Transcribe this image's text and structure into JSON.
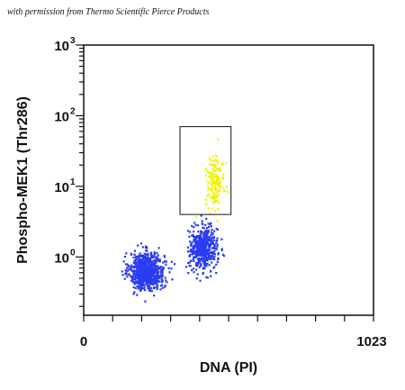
{
  "header": {
    "credit": "with permission from Thermo Scientific Pierce Products"
  },
  "chart_data": {
    "type": "scatter",
    "title": "",
    "xlabel": "DNA (PI)",
    "ylabel": "Phospho-MEK1 (Thr286)",
    "xlim": [
      0,
      1023
    ],
    "y_scale": "log",
    "ylim": [
      0.15,
      1000
    ],
    "x_ticks": [
      {
        "value": 0,
        "label": "0"
      },
      {
        "value": 1023,
        "label": "1023"
      }
    ],
    "y_ticks": [
      {
        "value": 1,
        "base": "10",
        "exponent": "0"
      },
      {
        "value": 10,
        "base": "10",
        "exponent": "1"
      },
      {
        "value": 100,
        "base": "10",
        "exponent": "2"
      },
      {
        "value": 1000,
        "base": "10",
        "exponent": "3"
      }
    ],
    "grid": false,
    "gate": {
      "x_range": [
        340,
        520
      ],
      "y_range": [
        4,
        70
      ]
    },
    "series": [
      {
        "color": "#2a3cf0",
        "clusters": [
          {
            "x_center": 220,
            "x_spread": 55,
            "y_center": 0.65,
            "y_spread_log10": 0.13,
            "count": 820
          },
          {
            "x_center": 420,
            "x_spread": 45,
            "y_center": 1.35,
            "y_spread_log10": 0.15,
            "count": 520
          }
        ]
      },
      {
        "color": "#f2f20a",
        "clusters": [
          {
            "x_center": 460,
            "x_spread": 30,
            "y_center": 12,
            "y_spread_log10": 0.18,
            "count": 160
          }
        ]
      }
    ]
  }
}
